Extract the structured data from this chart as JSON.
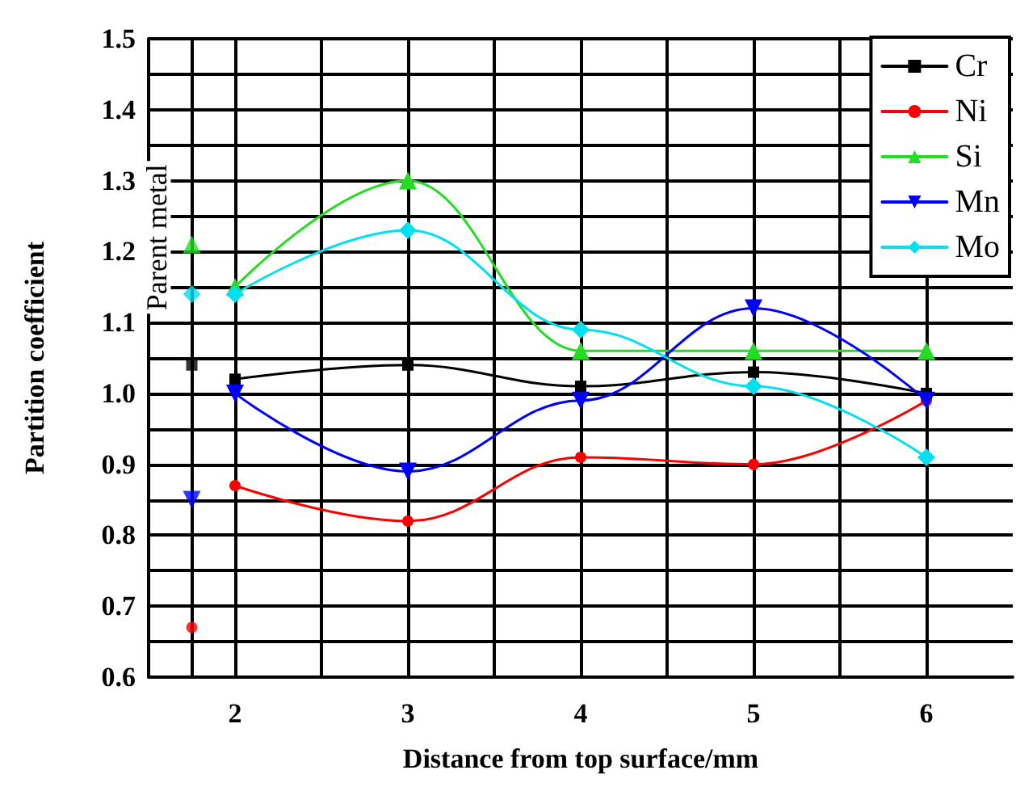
{
  "chart_data": {
    "type": "line",
    "xlabel": "Distance from top surface/mm",
    "ylabel": "Partition coefficient",
    "annotations": [
      {
        "text": "Parent metal",
        "x": 1.75,
        "y": 1.22
      }
    ],
    "xlim": [
      1.5,
      6.5
    ],
    "xticks": [
      {
        "value": 1.75,
        "label": null
      },
      2,
      {
        "value": 2.5,
        "label": null
      },
      3,
      {
        "value": 3.5,
        "label": null
      },
      4,
      {
        "value": 4.5,
        "label": null
      },
      5,
      {
        "value": 5.5,
        "label": null
      },
      6
    ],
    "ylim": [
      0.6,
      1.5
    ],
    "yticks": [
      0.6,
      {
        "value": 0.65,
        "label": null
      },
      0.7,
      {
        "value": 0.75,
        "label": null
      },
      0.8,
      {
        "value": 0.85,
        "label": null
      },
      0.9,
      {
        "value": 0.95,
        "label": null
      },
      {
        "value": 1.0,
        "label": "1.0"
      },
      {
        "value": 1.05,
        "label": null
      },
      1.1,
      {
        "value": 1.15,
        "label": null
      },
      1.2,
      {
        "value": 1.25,
        "label": null
      },
      1.3,
      {
        "value": 1.35,
        "label": null
      },
      1.4,
      {
        "value": 1.45,
        "label": null
      },
      1.5
    ],
    "grid": true,
    "legend": "top right",
    "line_style": "solid",
    "series": [
      {
        "name": "Cr",
        "color": "#000000",
        "marker": "square",
        "x": [
          2,
          3,
          4,
          5,
          6
        ],
        "values": [
          1.02,
          1.04,
          1.01,
          1.03,
          1.0
        ]
      },
      {
        "name": "Ni",
        "color": "#ff0000",
        "marker": "circle",
        "x": [
          2,
          3,
          4,
          5,
          6
        ],
        "values": [
          0.87,
          0.82,
          0.91,
          0.9,
          0.99
        ]
      },
      {
        "name": "Si",
        "color": "#22dd22",
        "marker": "triangle",
        "x": [
          2,
          3,
          4,
          5,
          6
        ],
        "values": [
          1.15,
          1.3,
          1.06,
          1.06,
          1.06
        ]
      },
      {
        "name": "Mn",
        "color": "#0000ff",
        "marker": "triangle-down",
        "x": [
          2,
          3,
          4,
          5,
          6
        ],
        "values": [
          1.0,
          0.89,
          0.99,
          1.12,
          0.99
        ]
      },
      {
        "name": "Mo",
        "color": "#00e0f0",
        "marker": "diamond",
        "x": [
          2,
          3,
          4,
          5,
          6
        ],
        "values": [
          1.14,
          1.23,
          1.09,
          1.01,
          0.91
        ]
      },
      {
        "type": "scatter",
        "color": "#000000",
        "marker": "square",
        "x": [
          1.75
        ],
        "values": [
          1.04
        ]
      },
      {
        "type": "scatter",
        "color": "#ff0000",
        "marker": "circle",
        "x": [
          1.75
        ],
        "values": [
          0.67
        ]
      },
      {
        "type": "scatter",
        "color": "#22dd22",
        "marker": "triangle",
        "x": [
          1.75
        ],
        "values": [
          1.21
        ]
      },
      {
        "type": "scatter",
        "color": "#0000ff",
        "marker": "triangle-down",
        "x": [
          1.75
        ],
        "values": [
          0.85
        ]
      },
      {
        "type": "scatter",
        "color": "#00e0f0",
        "marker": "diamond",
        "x": [
          1.75
        ],
        "values": [
          1.14
        ]
      }
    ]
  }
}
